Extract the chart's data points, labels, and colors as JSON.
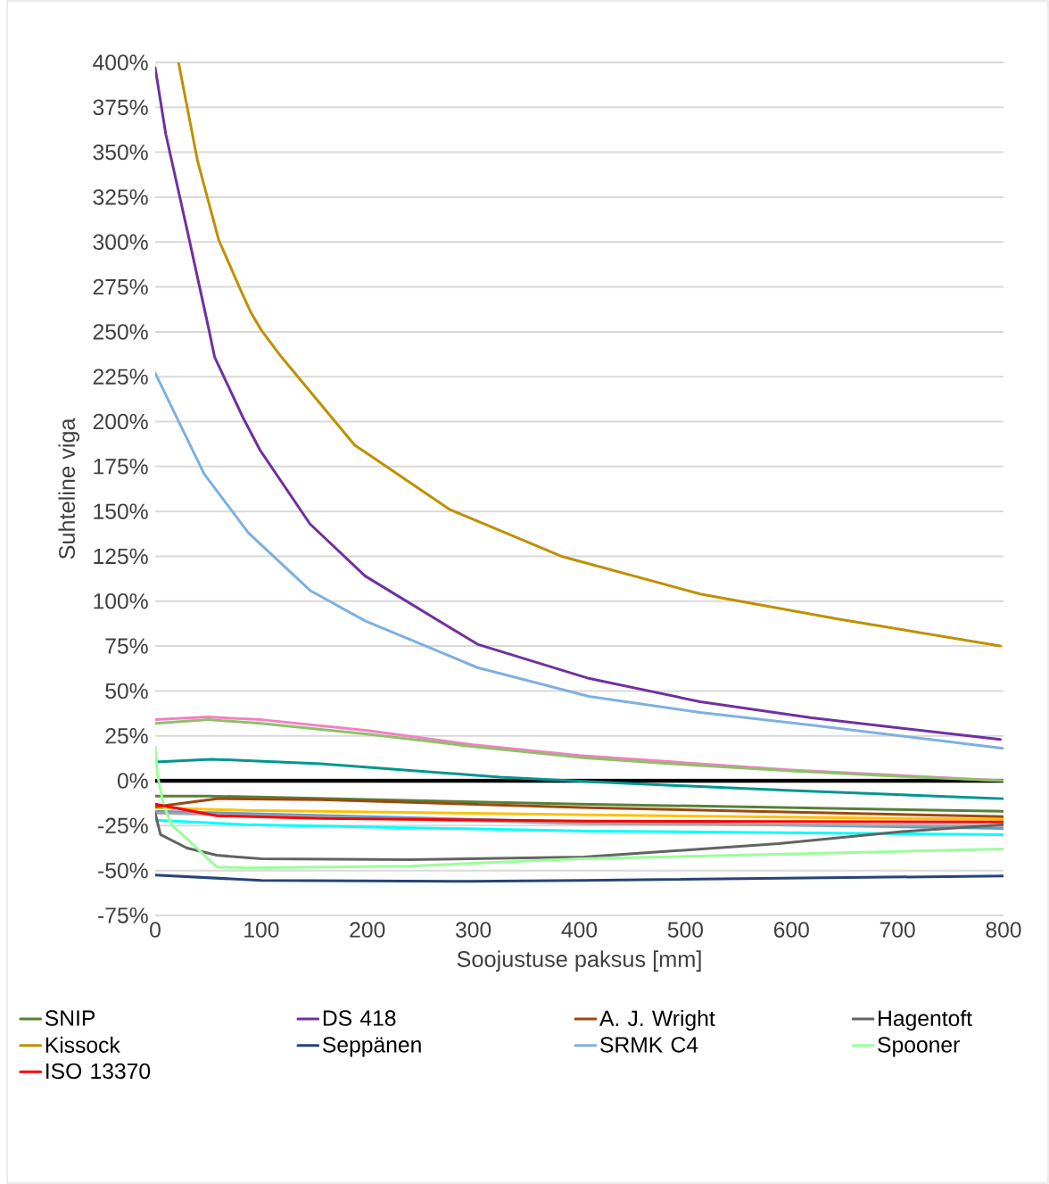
{
  "chart_data": {
    "type": "line",
    "xlabel": "Soojustuse paksus [mm]",
    "ylabel": "Suhteline viga",
    "xlim": [
      0,
      800
    ],
    "xticks": [
      0,
      100,
      200,
      300,
      400,
      500,
      600,
      700,
      800
    ],
    "ylim": [
      -75,
      400
    ],
    "yticks": [
      {
        "value": -75,
        "label": "-75%"
      },
      {
        "value": -50,
        "label": "-50%"
      },
      {
        "value": -25,
        "label": "-25%"
      },
      {
        "value": 0,
        "label": "0%"
      },
      {
        "value": 25,
        "label": "25%"
      },
      {
        "value": 50,
        "label": "50%"
      },
      {
        "value": 75,
        "label": "75%"
      },
      {
        "value": 100,
        "label": "100%"
      },
      {
        "value": 125,
        "label": "125%"
      },
      {
        "value": 150,
        "label": "150%"
      },
      {
        "value": 175,
        "label": "175%"
      },
      {
        "value": 200,
        "label": "200%"
      },
      {
        "value": 225,
        "label": "225%"
      },
      {
        "value": 250,
        "label": "250%"
      },
      {
        "value": 275,
        "label": "275%"
      },
      {
        "value": 300,
        "label": "300%"
      },
      {
        "value": 325,
        "label": "325%"
      },
      {
        "value": 350,
        "label": "350%"
      },
      {
        "value": 375,
        "label": "375%"
      },
      {
        "value": 400,
        "label": "400%"
      }
    ],
    "grid": "y",
    "legend": "bottom",
    "series": [
      {
        "color": "#000000",
        "x": [
          0,
          800
        ],
        "values": [
          0,
          0
        ]
      },
      {
        "color": "#5b9bd5",
        "x": [
          0,
          400,
          800
        ],
        "values": [
          -17,
          -23,
          -26.5
        ]
      },
      {
        "color": "#00ffff",
        "x": [
          0,
          86,
          409,
          800
        ],
        "values": [
          -22,
          -24.5,
          -28,
          -30
        ]
      },
      {
        "color": "#f47fc4",
        "x": [
          0,
          50,
          100,
          200,
          300,
          400,
          500,
          600,
          700,
          800
        ],
        "values": [
          34,
          35.5,
          34,
          28,
          20,
          14,
          10,
          6,
          3,
          0
        ]
      },
      {
        "color": "#00968f",
        "x": [
          0,
          53,
          156,
          325,
          409,
          600,
          800
        ],
        "values": [
          10.4,
          12,
          9.5,
          2,
          -0.5,
          -5.5,
          -10
        ]
      },
      {
        "color": "#8cc168",
        "x": [
          0,
          50,
          100,
          200,
          300,
          400,
          500,
          600,
          700,
          800
        ],
        "values": [
          32,
          34,
          32,
          26,
          19,
          13,
          9,
          5.5,
          2.5,
          0
        ]
      },
      {
        "color": "#a5a5a5",
        "x": [
          0,
          409,
          800
        ],
        "values": [
          -18,
          -24,
          -25
        ]
      },
      {
        "color": "#ffc000",
        "x": [
          0,
          86,
          409,
          800
        ],
        "values": [
          -15,
          -16.5,
          -19,
          -21.5
        ]
      },
      {
        "name": "SNIP",
        "color": "#548235",
        "x": [
          0,
          50,
          400,
          800
        ],
        "values": [
          -8.5,
          -8.5,
          -13,
          -17
        ]
      },
      {
        "name": "DS 418",
        "color": "#7030a0",
        "x": [
          0,
          10,
          30,
          50,
          56,
          83,
          99,
          146,
          198,
          304,
          409,
          514,
          619,
          797
        ],
        "values": [
          397,
          360,
          307,
          253,
          236,
          202,
          184,
          143,
          114,
          76,
          57,
          44,
          35,
          23
        ]
      },
      {
        "name": "A. J. Wright",
        "color": "#9e480e",
        "x": [
          0,
          58,
          156,
          409,
          800
        ],
        "values": [
          -14.5,
          -10,
          -10.5,
          -15,
          -20
        ]
      },
      {
        "name": "Hagentoft",
        "color": "#636363",
        "x": [
          0,
          5,
          30,
          58,
          100,
          240,
          404,
          588,
          700,
          800
        ],
        "values": [
          -18,
          -30,
          -37.5,
          -41.5,
          -43.5,
          -44,
          -42.5,
          -35,
          -28.5,
          -24.5
        ]
      },
      {
        "name": "Kissock",
        "color": "#bf9000",
        "x": [
          22,
          40,
          60,
          80,
          90,
          100,
          119,
          188,
          278,
          383,
          514,
          645,
          797
        ],
        "values": [
          400,
          345,
          301,
          274,
          261,
          251,
          236,
          187,
          151,
          125,
          104,
          90,
          75
        ]
      },
      {
        "name": "Seppänen",
        "color": "#264478",
        "x": [
          0,
          100,
          296,
          404,
          800
        ],
        "values": [
          -52.5,
          -55.5,
          -56,
          -55.5,
          -53
        ]
      },
      {
        "name": "SRMK C4",
        "color": "#7eb0e0",
        "x": [
          0,
          46,
          88,
          146,
          198,
          304,
          409,
          514,
          619,
          800
        ],
        "values": [
          227,
          171,
          138,
          106,
          89,
          63,
          47,
          38,
          31,
          18
        ]
      },
      {
        "name": "Spooner",
        "color": "#99ff99",
        "x": [
          0,
          2.2,
          7.8,
          16,
          33,
          58,
          86,
          240,
          400,
          800
        ],
        "values": [
          19,
          3,
          -13.5,
          -25,
          -34,
          -48,
          -48.5,
          -47.5,
          -43.5,
          -38
        ]
      },
      {
        "name": "ISO 13370",
        "color": "#ff0000",
        "x": [
          0,
          58,
          156,
          409,
          800
        ],
        "values": [
          -13,
          -19.5,
          -21,
          -22.5,
          -23
        ]
      }
    ]
  }
}
